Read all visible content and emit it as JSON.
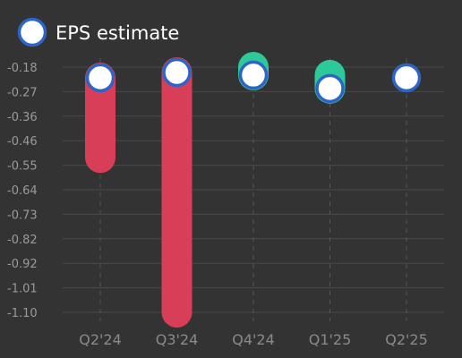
{
  "chart_data": {
    "type": "bar",
    "categories": [
      "Q2'24",
      "Q3'24",
      "Q4'24",
      "Q1'25",
      "Q2'25"
    ],
    "y_ticks": [
      "-0.18",
      "-0.27",
      "-0.36",
      "-0.46",
      "-0.55",
      "-0.64",
      "-0.73",
      "-0.82",
      "-0.92",
      "-1.01",
      "-1.10"
    ],
    "ylim": [
      -1.1,
      -0.18
    ],
    "series": [
      {
        "name": "EPS estimate",
        "values": [
          -0.22,
          -0.2,
          -0.21,
          -0.26,
          -0.22
        ]
      },
      {
        "values": [
          -0.52,
          -1.1,
          -0.18,
          -0.21,
          null
        ]
      }
    ],
    "legend": {
      "label": "EPS estimate",
      "position": "top-left"
    },
    "colors": {
      "background": "#333333",
      "miss": "#d83e57",
      "beat": "#2ec99a",
      "estimate_fill": "#ffffff",
      "estimate_stroke": "#2d64c8",
      "grid": "#4a4a4a"
    },
    "grid": true
  }
}
